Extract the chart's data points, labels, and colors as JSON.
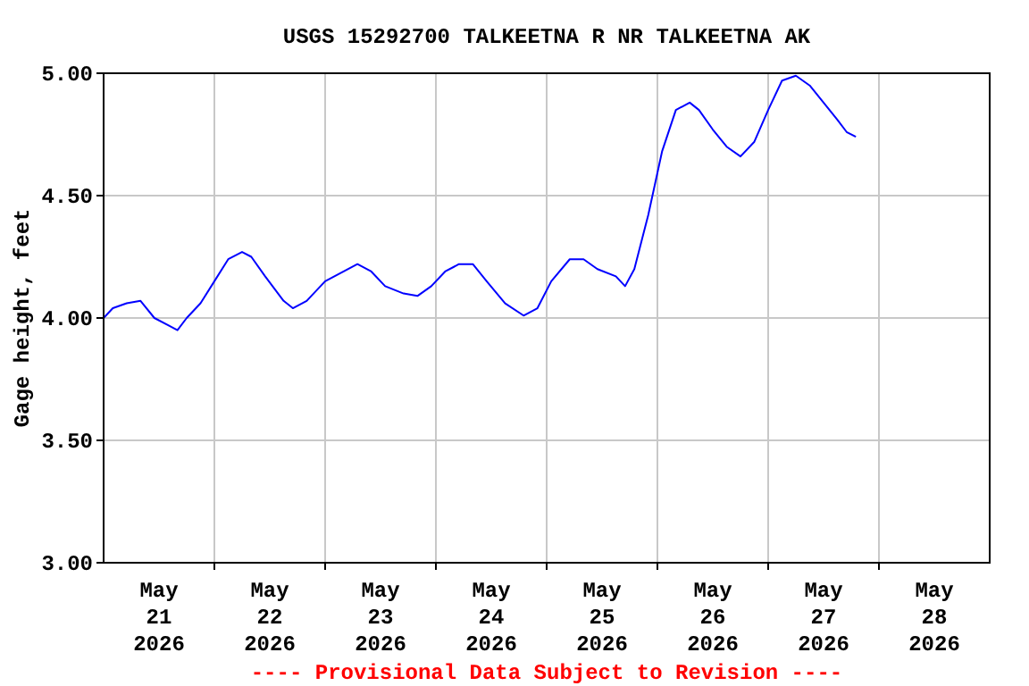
{
  "chart_data": {
    "type": "line",
    "title": "USGS 15292700 TALKEETNA R NR TALKEETNA AK",
    "ylabel": "Gage height, feet",
    "annotations": [
      "---- Provisional Data Subject to Revision ----"
    ],
    "x": [
      "2026-05-21T00:00",
      "2026-05-21T02:00",
      "2026-05-21T05:00",
      "2026-05-21T08:00",
      "2026-05-21T11:00",
      "2026-05-21T14:00",
      "2026-05-21T16:00",
      "2026-05-21T18:00",
      "2026-05-21T21:00",
      "2026-05-22T00:00",
      "2026-05-22T03:00",
      "2026-05-22T06:00",
      "2026-05-22T08:00",
      "2026-05-22T11:00",
      "2026-05-22T15:00",
      "2026-05-22T17:00",
      "2026-05-22T20:00",
      "2026-05-23T00:00",
      "2026-05-23T04:00",
      "2026-05-23T07:00",
      "2026-05-23T10:00",
      "2026-05-23T13:00",
      "2026-05-23T17:00",
      "2026-05-23T20:00",
      "2026-05-23T23:00",
      "2026-05-24T02:00",
      "2026-05-24T05:00",
      "2026-05-24T08:00",
      "2026-05-24T11:00",
      "2026-05-24T15:00",
      "2026-05-24T19:00",
      "2026-05-24T22:00",
      "2026-05-25T01:00",
      "2026-05-25T05:00",
      "2026-05-25T08:00",
      "2026-05-25T11:00",
      "2026-05-25T15:00",
      "2026-05-25T17:00",
      "2026-05-25T19:00",
      "2026-05-25T22:00",
      "2026-05-26T01:00",
      "2026-05-26T04:00",
      "2026-05-26T07:00",
      "2026-05-26T09:00",
      "2026-05-26T12:00",
      "2026-05-26T15:00",
      "2026-05-26T18:00",
      "2026-05-26T21:00",
      "2026-05-27T00:00",
      "2026-05-27T03:00",
      "2026-05-27T06:00",
      "2026-05-27T09:00",
      "2026-05-27T12:00",
      "2026-05-27T15:00",
      "2026-05-27T17:00",
      "2026-05-27T19:00"
    ],
    "series": [
      {
        "color": "#0000ff",
        "values": [
          4.0,
          4.04,
          4.06,
          4.07,
          4.0,
          3.97,
          3.95,
          4.0,
          4.06,
          4.15,
          4.24,
          4.27,
          4.25,
          4.17,
          4.07,
          4.04,
          4.07,
          4.15,
          4.19,
          4.22,
          4.19,
          4.13,
          4.1,
          4.09,
          4.13,
          4.19,
          4.22,
          4.22,
          4.15,
          4.06,
          4.01,
          4.04,
          4.15,
          4.24,
          4.24,
          4.2,
          4.17,
          4.13,
          4.2,
          4.42,
          4.68,
          4.85,
          4.88,
          4.85,
          4.77,
          4.7,
          4.66,
          4.72,
          4.85,
          4.97,
          4.99,
          4.95,
          4.88,
          4.81,
          4.76,
          4.74
        ]
      }
    ],
    "xlim": [
      "2026-05-21T00:00",
      "2026-05-29T00:00"
    ],
    "xticks": [
      {
        "value": "2026-05-21T12:00",
        "label": "May\n21\n2026"
      },
      {
        "value": "2026-05-22T00:00",
        "label": null
      },
      {
        "value": "2026-05-22T12:00",
        "label": "May\n22\n2026"
      },
      {
        "value": "2026-05-23T00:00",
        "label": null
      },
      {
        "value": "2026-05-23T12:00",
        "label": "May\n23\n2026"
      },
      {
        "value": "2026-05-24T00:00",
        "label": null
      },
      {
        "value": "2026-05-24T12:00",
        "label": "May\n24\n2026"
      },
      {
        "value": "2026-05-25T00:00",
        "label": null
      },
      {
        "value": "2026-05-25T12:00",
        "label": "May\n25\n2026"
      },
      {
        "value": "2026-05-26T00:00",
        "label": null
      },
      {
        "value": "2026-05-26T12:00",
        "label": "May\n26\n2026"
      },
      {
        "value": "2026-05-27T00:00",
        "label": null
      },
      {
        "value": "2026-05-27T12:00",
        "label": "May\n27\n2026"
      },
      {
        "value": "2026-05-28T00:00",
        "label": null
      },
      {
        "value": "2026-05-28T12:00",
        "label": "May\n28\n2026"
      }
    ],
    "ylim": [
      3,
      5
    ],
    "yticks": [
      {
        "value": 3,
        "label": "3.00"
      },
      {
        "value": 3.5,
        "label": "3.50"
      },
      {
        "value": 4,
        "label": "4.00"
      },
      {
        "value": 4.5,
        "label": "4.50"
      },
      {
        "value": 5,
        "label": "5.00"
      }
    ],
    "grid": true,
    "marker": "none",
    "line_style": "solid"
  }
}
